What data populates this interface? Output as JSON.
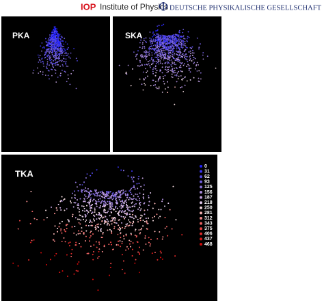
{
  "header": {
    "iop_logo": "IOP",
    "iop_name": "Institute of Physics",
    "dpg_logo": "Φ",
    "dpg_name": "DEUTSCHE PHYSIKALISCHE GESELLSCHAFT"
  },
  "panels": [
    {
      "label": "PKA"
    },
    {
      "label": "SKA"
    },
    {
      "label": "TKA"
    }
  ],
  "legend": {
    "entries": [
      {
        "value": 0,
        "color": "#1f1fff"
      },
      {
        "value": 31,
        "color": "#3a34f0"
      },
      {
        "value": 62,
        "color": "#5549e6"
      },
      {
        "value": 93,
        "color": "#6f5ddc"
      },
      {
        "value": 125,
        "color": "#8a72d6"
      },
      {
        "value": 156,
        "color": "#a688d6"
      },
      {
        "value": 187,
        "color": "#c2a2dc"
      },
      {
        "value": 218,
        "color": "#dcc4e6"
      },
      {
        "value": 250,
        "color": "#f0d8dc"
      },
      {
        "value": 281,
        "color": "#f2b0b0"
      },
      {
        "value": 312,
        "color": "#ee8888"
      },
      {
        "value": 343,
        "color": "#ea6262"
      },
      {
        "value": 375,
        "color": "#e64444"
      },
      {
        "value": 406,
        "color": "#e02a2a"
      },
      {
        "value": 437,
        "color": "#d81818"
      },
      {
        "value": 468,
        "color": "#cc0a0a"
      }
    ]
  }
}
